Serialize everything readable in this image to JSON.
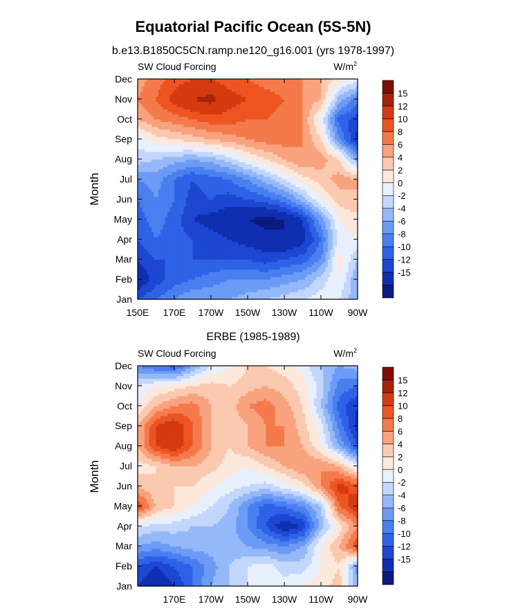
{
  "figure": {
    "title": "Equatorial Pacific Ocean (5S-5N)",
    "subtitle": "b.e13.B1850C5CN.ramp.ne120_g16.001 (yrs 1978-1997)"
  },
  "colorbar": {
    "levels": [
      -15,
      -12,
      -10,
      -8,
      -6,
      -4,
      -2,
      0,
      2,
      4,
      6,
      8,
      10,
      12,
      15
    ],
    "tick_labels": [
      "15",
      "12",
      "10",
      "8",
      "6",
      "4",
      "2",
      "0",
      "-2",
      "-4",
      "-6",
      "-8",
      "-10",
      "-12",
      "-15"
    ],
    "colors": [
      "#0c1a80",
      "#0f2fb0",
      "#1d47d2",
      "#2f62e6",
      "#4a7fef",
      "#6c9bf5",
      "#95b8f8",
      "#c3d6fb",
      "#e8f0fd",
      "#fde8dc",
      "#fbc9b0",
      "#f8a27e",
      "#f47a4c",
      "#ec5522",
      "#d43b10",
      "#a8220a",
      "#7a0f05"
    ]
  },
  "chart_data": [
    {
      "type": "heatmap",
      "subtitle": "",
      "left_label": "SW Cloud Forcing",
      "units": "W/m",
      "units_exponent": "2",
      "xlabel": "",
      "ylabel": "Month",
      "x_range": [
        150,
        270
      ],
      "x_ticks": [
        {
          "lon": 150,
          "label": "150E"
        },
        {
          "lon": 170,
          "label": "170E"
        },
        {
          "lon": 190,
          "label": "170W"
        },
        {
          "lon": 210,
          "label": "150W"
        },
        {
          "lon": 230,
          "label": "130W"
        },
        {
          "lon": 250,
          "label": "110W"
        },
        {
          "lon": 270,
          "label": "90W"
        }
      ],
      "y_ticks": [
        "Jan",
        "Feb",
        "Mar",
        "Apr",
        "May",
        "Jun",
        "Jul",
        "Aug",
        "Sep",
        "Oct",
        "Nov",
        "Dec"
      ],
      "lon": [
        150,
        160,
        170,
        180,
        190,
        200,
        210,
        220,
        230,
        240,
        250,
        260,
        270
      ],
      "values": [
        [
          -10,
          -8,
          -6,
          -4,
          -4,
          -4,
          -3,
          -2,
          -1,
          0,
          1,
          0,
          -4
        ],
        [
          -14,
          -11,
          -9,
          -8,
          -7,
          -6,
          -6,
          -6,
          -5,
          -4,
          -1,
          2,
          -4
        ],
        [
          -12,
          -10,
          -10,
          -10,
          -10,
          -10,
          -10,
          -11,
          -10,
          -9,
          -6,
          3,
          -2
        ],
        [
          -10,
          -8,
          -9,
          -10,
          -11,
          -12,
          -13,
          -14,
          -15,
          -13,
          -8,
          1,
          2
        ],
        [
          -9,
          -7,
          -9,
          -12,
          -13,
          -14,
          -15,
          -16,
          -15,
          -12,
          -5,
          2,
          3
        ],
        [
          -8,
          -6,
          -8,
          -11,
          -10,
          -11,
          -10,
          -9,
          -7,
          -3,
          2,
          5,
          6
        ],
        [
          -6,
          -5,
          -8,
          -10,
          -9,
          -8,
          -6,
          -3,
          0,
          3,
          5,
          7,
          6
        ],
        [
          -1,
          -2,
          -3,
          -4,
          -3,
          -1,
          2,
          4,
          6,
          8,
          7,
          4,
          -4
        ],
        [
          1,
          3,
          4,
          5,
          6,
          7,
          8,
          9,
          9,
          8,
          4,
          -6,
          -13
        ],
        [
          6,
          8,
          9,
          10,
          11,
          11,
          10,
          10,
          9,
          8,
          1,
          -9,
          -11
        ],
        [
          8,
          10,
          13,
          15,
          16,
          13,
          12,
          11,
          10,
          8,
          6,
          -3,
          -7
        ],
        [
          7,
          9,
          11,
          12,
          12,
          11,
          10,
          9,
          9,
          8,
          6,
          3,
          1
        ]
      ]
    },
    {
      "type": "heatmap",
      "subtitle": "ERBE (1985-1989)",
      "left_label": "SW Cloud Forcing",
      "units": "W/m",
      "units_exponent": "2",
      "xlabel": "",
      "ylabel": "Month",
      "x_range": [
        150,
        270
      ],
      "x_ticks": [
        {
          "lon": 170,
          "label": "170E"
        },
        {
          "lon": 190,
          "label": "170W"
        },
        {
          "lon": 210,
          "label": "150W"
        },
        {
          "lon": 230,
          "label": "130W"
        },
        {
          "lon": 250,
          "label": "110W"
        },
        {
          "lon": 270,
          "label": "90W"
        }
      ],
      "y_ticks": [
        "Jan",
        "Feb",
        "Mar",
        "Apr",
        "May",
        "Jun",
        "Jul",
        "Aug",
        "Sep",
        "Oct",
        "Nov",
        "Dec"
      ],
      "lon": [
        150,
        160,
        170,
        180,
        190,
        200,
        210,
        220,
        230,
        240,
        250,
        260,
        270
      ],
      "values": [
        [
          -12,
          -15,
          -12,
          -8,
          -4,
          -2,
          0,
          2,
          1,
          2,
          3,
          5,
          -4
        ],
        [
          -10,
          -12,
          -10,
          -8,
          -5,
          -2,
          0,
          1,
          -1,
          -1,
          2,
          4,
          -5
        ],
        [
          -4,
          -5,
          -4,
          -3,
          -3,
          -3,
          -4,
          -5,
          -6,
          -4,
          2,
          6,
          12
        ],
        [
          0,
          -1,
          -1,
          -2,
          -2,
          -3,
          -6,
          -10,
          -14,
          -12,
          -3,
          3,
          8
        ],
        [
          12,
          6,
          4,
          2,
          0,
          -2,
          -6,
          -9,
          -8,
          -6,
          -2,
          10,
          14
        ],
        [
          6,
          4,
          4,
          4,
          2,
          1,
          0,
          -1,
          1,
          3,
          8,
          13,
          11
        ],
        [
          3,
          4,
          6,
          6,
          5,
          3,
          2,
          4,
          6,
          8,
          8,
          6,
          1
        ],
        [
          6,
          12,
          14,
          10,
          6,
          4,
          6,
          8,
          8,
          6,
          2,
          -4,
          -10
        ],
        [
          6,
          12,
          14,
          10,
          6,
          4,
          6,
          8,
          8,
          5,
          1,
          -7,
          -13
        ],
        [
          2,
          6,
          8,
          9,
          6,
          5,
          8,
          9,
          7,
          4,
          -2,
          -9,
          -12
        ],
        [
          0,
          2,
          3,
          4,
          5,
          4,
          5,
          6,
          5,
          3,
          -1,
          -7,
          -8
        ],
        [
          -6,
          -8,
          -9,
          -4,
          0,
          2,
          4,
          4,
          3,
          1,
          -2,
          -4,
          -3
        ]
      ]
    }
  ]
}
